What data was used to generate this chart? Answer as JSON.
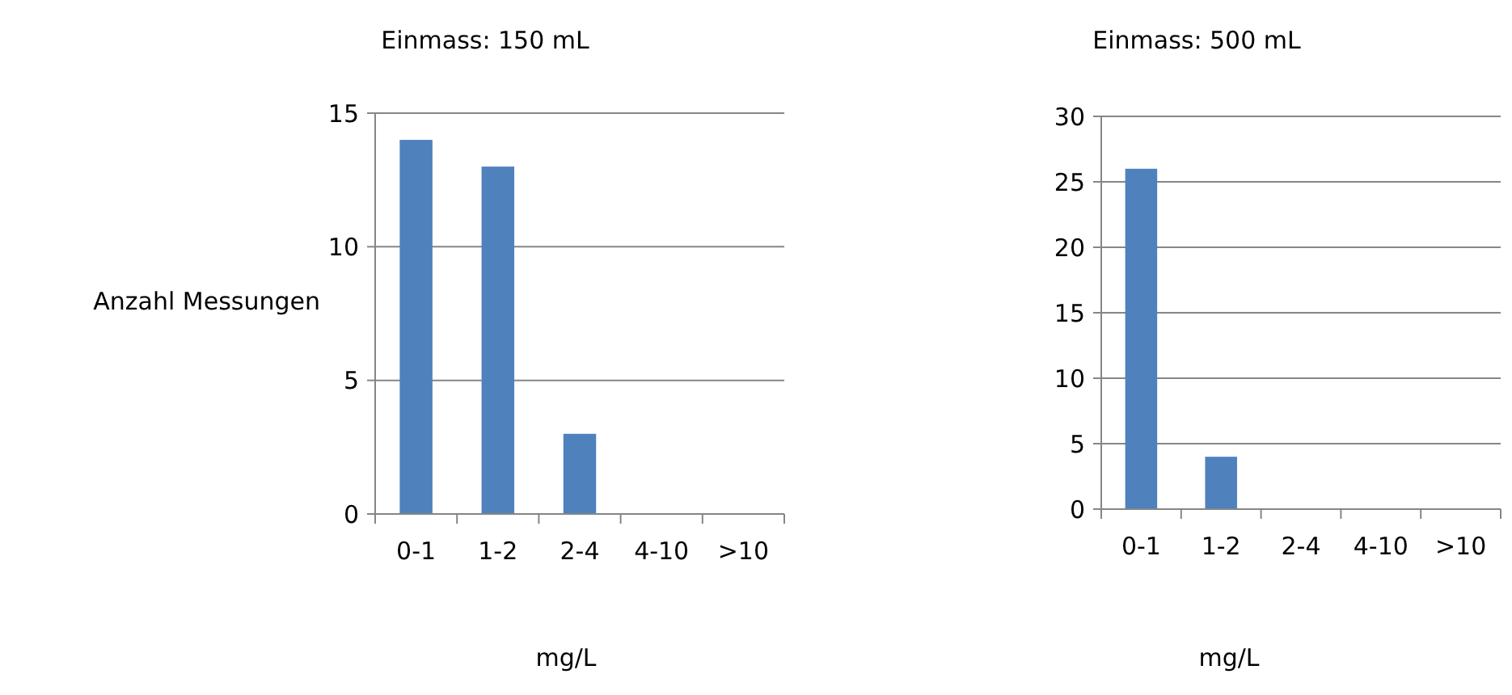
{
  "chart_data": [
    {
      "type": "bar",
      "title": "Einmass: 150 mL",
      "xlabel": "mg/L",
      "ylabel": "Anzahl Messungen",
      "categories": [
        "0-1",
        "1-2",
        "2-4",
        "4-10",
        ">10"
      ],
      "values": [
        14,
        13,
        3,
        0,
        0
      ],
      "color": "#4f81bd",
      "ylim": [
        0,
        15
      ],
      "yticks": [
        0,
        5,
        10,
        15
      ],
      "grid": "y"
    },
    {
      "type": "bar",
      "title": "Einmass: 500 mL",
      "xlabel": "mg/L",
      "categories": [
        "0-1",
        "1-2",
        "2-4",
        "4-10",
        ">10"
      ],
      "values": [
        26,
        4,
        0,
        0,
        0
      ],
      "color": "#4f81bd",
      "ylim": [
        0,
        30
      ],
      "yticks": [
        0,
        5,
        10,
        15,
        20,
        25,
        30
      ],
      "grid": "y"
    }
  ]
}
